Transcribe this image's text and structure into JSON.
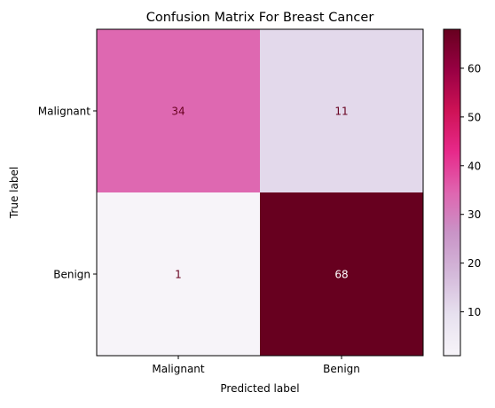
{
  "chart_data": {
    "type": "heatmap",
    "title": "Confusion Matrix For Breast Cancer",
    "xlabel": "Predicted label",
    "ylabel": "True label",
    "x_categories": [
      "Malignant",
      "Benign"
    ],
    "y_categories": [
      "Malignant",
      "Benign"
    ],
    "matrix": [
      [
        34,
        11
      ],
      [
        1,
        68
      ]
    ],
    "colorbar": {
      "vmin": 1,
      "vmax": 68,
      "ticks": [
        10,
        20,
        30,
        40,
        50,
        60
      ],
      "colormap": "PuRd"
    },
    "cell_text_colors": {
      "dark_text": "#67001f",
      "light_text": "#ffffff"
    }
  }
}
